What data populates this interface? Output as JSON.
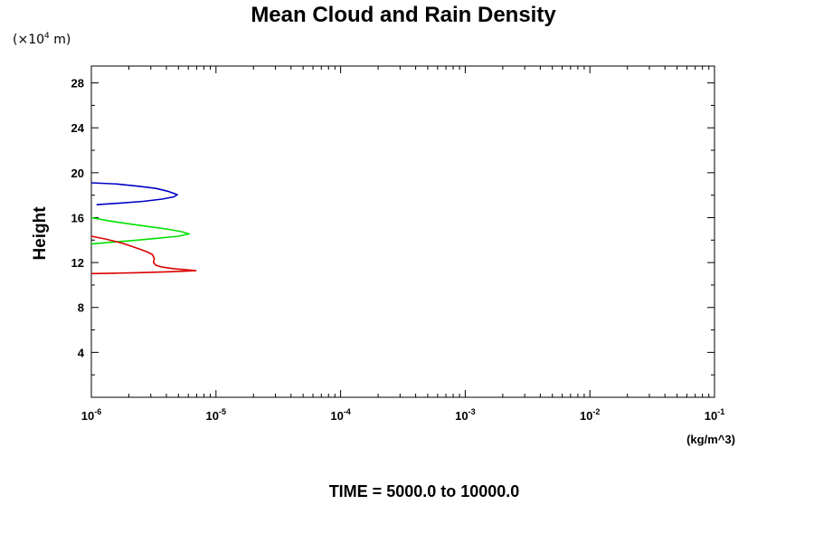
{
  "chart_data": {
    "type": "line",
    "title": "Mean Cloud and Rain Density",
    "y_scale_note": {
      "prefix": "(×10",
      "exponent": "4",
      "suffix": " m)"
    },
    "ylabel": "Height",
    "xlabel_unit": "(kg/m^3)",
    "footer": "TIME = 5000.0 to 10000.0",
    "x_scale": "log",
    "xlim": [
      1e-06,
      0.1
    ],
    "ylim": [
      0,
      29.5
    ],
    "grid": false,
    "legend": "none",
    "y_ticks": [
      {
        "value": 4,
        "label": "4"
      },
      {
        "value": 8,
        "label": "8"
      },
      {
        "value": 12,
        "label": "12"
      },
      {
        "value": 16,
        "label": "16"
      },
      {
        "value": 20,
        "label": "20"
      },
      {
        "value": 24,
        "label": "24"
      },
      {
        "value": 28,
        "label": "28"
      }
    ],
    "x_ticks": [
      {
        "value": 1e-06,
        "base": "10",
        "exp": "-6"
      },
      {
        "value": 1e-05,
        "base": "10",
        "exp": "-5"
      },
      {
        "value": 0.0001,
        "base": "10",
        "exp": "-4"
      },
      {
        "value": 0.001,
        "base": "10",
        "exp": "-3"
      },
      {
        "value": 0.01,
        "base": "10",
        "exp": "-2"
      },
      {
        "value": 0.1,
        "base": "10",
        "exp": "-1"
      }
    ],
    "series": [
      {
        "color": "#0000c8",
        "points": [
          [
            1e-06,
            19.1
          ],
          [
            1.6e-06,
            19.0
          ],
          [
            2.4e-06,
            18.8
          ],
          [
            3.3e-06,
            18.6
          ],
          [
            4.1e-06,
            18.35
          ],
          [
            4.9e-06,
            18.05
          ],
          [
            4.6e-06,
            17.85
          ],
          [
            3.7e-06,
            17.65
          ],
          [
            2.6e-06,
            17.45
          ],
          [
            1.7e-06,
            17.3
          ],
          [
            1.1e-06,
            17.15
          ]
        ]
      },
      {
        "color": "#00e000",
        "points": [
          [
            1e-06,
            16.0
          ],
          [
            1.4e-06,
            15.7
          ],
          [
            2e-06,
            15.45
          ],
          [
            2.9e-06,
            15.2
          ],
          [
            4.2e-06,
            14.95
          ],
          [
            5.3e-06,
            14.75
          ],
          [
            6.1e-06,
            14.55
          ],
          [
            5e-06,
            14.35
          ],
          [
            3.3e-06,
            14.15
          ],
          [
            2.1e-06,
            13.95
          ],
          [
            1.4e-06,
            13.8
          ],
          [
            1e-06,
            13.65
          ]
        ]
      },
      {
        "color": "#dc0000",
        "points": [
          [
            1e-06,
            14.35
          ],
          [
            1.3e-06,
            14.1
          ],
          [
            1.8e-06,
            13.7
          ],
          [
            2.3e-06,
            13.3
          ],
          [
            2.8e-06,
            12.95
          ],
          [
            3.1e-06,
            12.7
          ],
          [
            3.2e-06,
            12.35
          ],
          [
            3.15e-06,
            12.0
          ],
          [
            3.3e-06,
            11.75
          ],
          [
            3.7e-06,
            11.6
          ],
          [
            4.6e-06,
            11.45
          ],
          [
            5.9e-06,
            11.35
          ],
          [
            6.9e-06,
            11.28
          ],
          [
            4.2e-06,
            11.18
          ],
          [
            2.4e-06,
            11.1
          ],
          [
            1.5e-06,
            11.05
          ],
          [
            1e-06,
            11.02
          ]
        ]
      }
    ]
  }
}
